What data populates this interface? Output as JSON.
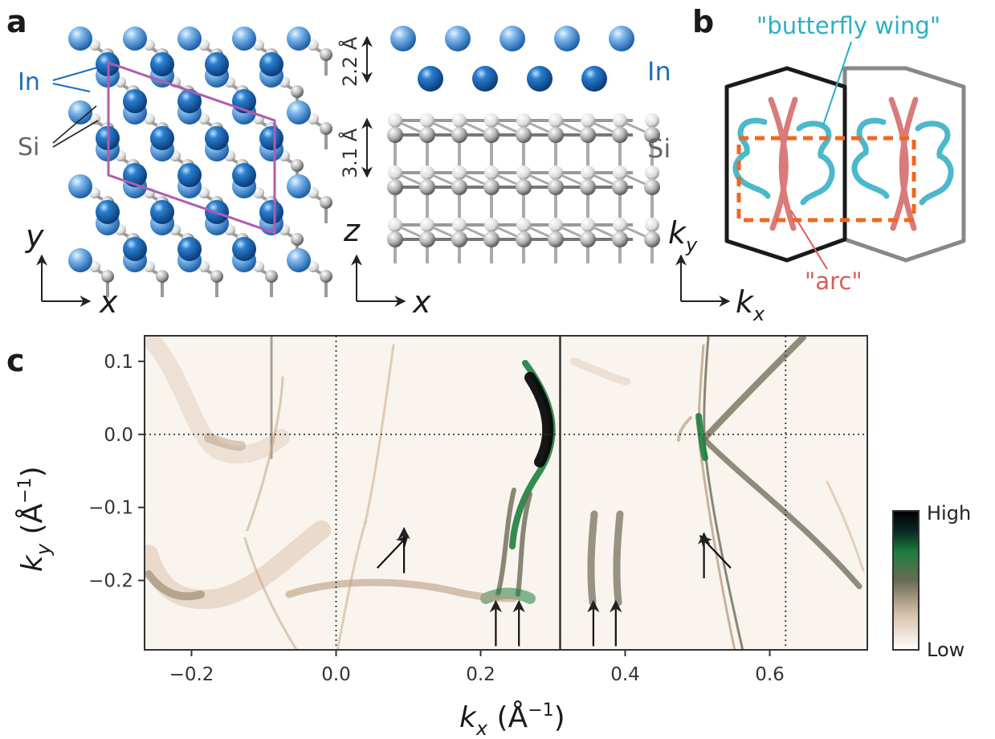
{
  "panels": {
    "a": {
      "label": "a",
      "element_in": "In",
      "element_si": "Si",
      "spacing_in": "2.2 Å",
      "spacing_si": "3.1 Å",
      "top_axis_vertical": "y",
      "top_axis_horizontal": "x",
      "side_axis_vertical": "z",
      "side_axis_horizontal": "x",
      "side_label_in": "In",
      "side_label_si": "Si"
    },
    "b": {
      "label": "b",
      "butterfly_label": "\"butterfly wing\"",
      "arc_label": "\"arc\"",
      "axis_vertical": "k",
      "axis_vertical_sub": "y",
      "axis_horizontal": "k",
      "axis_horizontal_sub": "x",
      "colors": {
        "butterfly": "#4bb8cc",
        "arc": "#d97b7b",
        "box": "#f26522",
        "bz_left": "#1a1a1a",
        "bz_right": "#888888"
      }
    },
    "c": {
      "label": "c",
      "colorbar_high": "High",
      "colorbar_low": "Low"
    }
  },
  "chart_data": {
    "type": "heatmap",
    "xlabel": "k",
    "xlabel_sub": "x",
    "xlabel_unit": "(Å",
    "xlabel_unit_sup": "−1",
    "xlabel_unit_close": ")",
    "ylabel": "k",
    "ylabel_sub": "y",
    "ylabel_unit": "(Å",
    "ylabel_unit_sup": "−1",
    "ylabel_unit_close": ")",
    "xlim": [
      -0.265,
      0.735
    ],
    "ylim": [
      -0.295,
      0.135
    ],
    "x_ticks": [
      -0.2,
      0.0,
      0.2,
      0.4,
      0.6
    ],
    "x_tick_labels": [
      "−0.2",
      "0.0",
      "0.2",
      "0.4",
      "0.6"
    ],
    "y_ticks": [
      0.1,
      0.0,
      -0.1,
      -0.2
    ],
    "y_tick_labels": [
      "0.1",
      "0.0",
      "−0.1",
      "−0.2"
    ],
    "split_at_x": 0.31,
    "dotted_lines_x": [
      0.0,
      0.622
    ],
    "dotted_line_y": 0.0,
    "arrows": [
      {
        "x": 0.057,
        "y": -0.183,
        "dir": "diag"
      },
      {
        "x": 0.094,
        "y": -0.19,
        "dir": "up"
      },
      {
        "x": 0.221,
        "y": -0.29,
        "dir": "up"
      },
      {
        "x": 0.253,
        "y": -0.29,
        "dir": "up"
      },
      {
        "x": 0.356,
        "y": -0.29,
        "dir": "up"
      },
      {
        "x": 0.387,
        "y": -0.29,
        "dir": "up"
      },
      {
        "x": 0.509,
        "y": -0.197,
        "dir": "up"
      },
      {
        "x": 0.546,
        "y": -0.183,
        "dir": "diagleft"
      }
    ],
    "colormap": [
      "#ffffff",
      "#d8c2ae",
      "#6b6a55",
      "#1d7f3e",
      "#0a2a25",
      "#000000"
    ],
    "grid": false
  }
}
